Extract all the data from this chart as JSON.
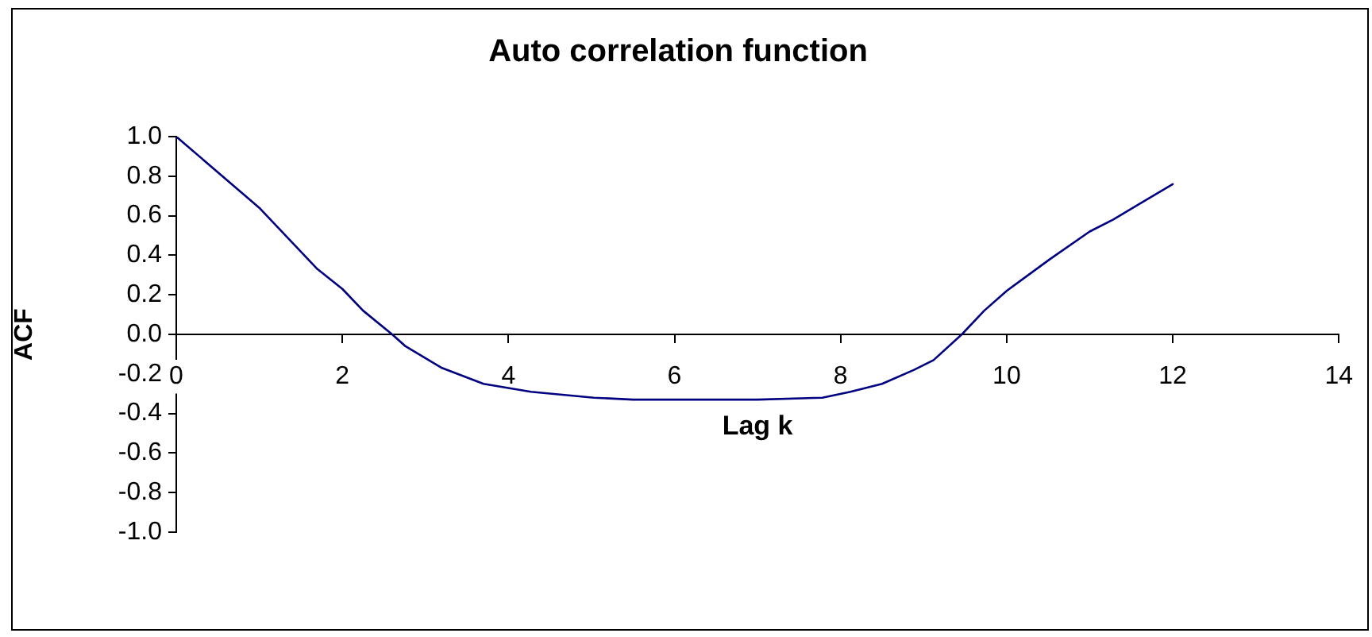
{
  "chart_data": {
    "type": "line",
    "title": "Auto correlation function",
    "xlabel": "Lag k",
    "ylabel": "ACF",
    "x": [
      0,
      1,
      1.7,
      2,
      2.25,
      2.6,
      2.76,
      3.2,
      3.7,
      4.27,
      5.03,
      5.5,
      6.2,
      7,
      7.78,
      8.12,
      8.5,
      8.88,
      9.12,
      9.46,
      9.73,
      10,
      10.52,
      11,
      11.28,
      12
    ],
    "values": [
      1.0,
      0.64,
      0.33,
      0.23,
      0.12,
      0.0,
      -0.06,
      -0.17,
      -0.25,
      -0.29,
      -0.32,
      -0.33,
      -0.33,
      -0.33,
      -0.32,
      -0.29,
      -0.25,
      -0.18,
      -0.13,
      0.0,
      0.12,
      0.22,
      0.38,
      0.52,
      0.58,
      0.76
    ],
    "color": "#000080",
    "marker": "none",
    "xlim": [
      0,
      14
    ],
    "xticks": [
      0,
      2,
      4,
      6,
      8,
      10,
      12,
      14
    ],
    "ylim": [
      -1,
      1
    ],
    "yticks": [
      {
        "value": -1,
        "label": "-1.0"
      },
      {
        "value": -0.8,
        "label": "-0.8"
      },
      {
        "value": -0.6,
        "label": "-0.6"
      },
      {
        "value": -0.4,
        "label": "-0.4"
      },
      {
        "value": -0.2,
        "label": "-0.2"
      },
      {
        "value": 0,
        "label": "0.0"
      },
      {
        "value": 0.2,
        "label": "0.2"
      },
      {
        "value": 0.4,
        "label": "0.4"
      },
      {
        "value": 0.6,
        "label": "0.6"
      },
      {
        "value": 0.8,
        "label": "0.8"
      },
      {
        "value": 1,
        "label": "1.0"
      }
    ]
  }
}
